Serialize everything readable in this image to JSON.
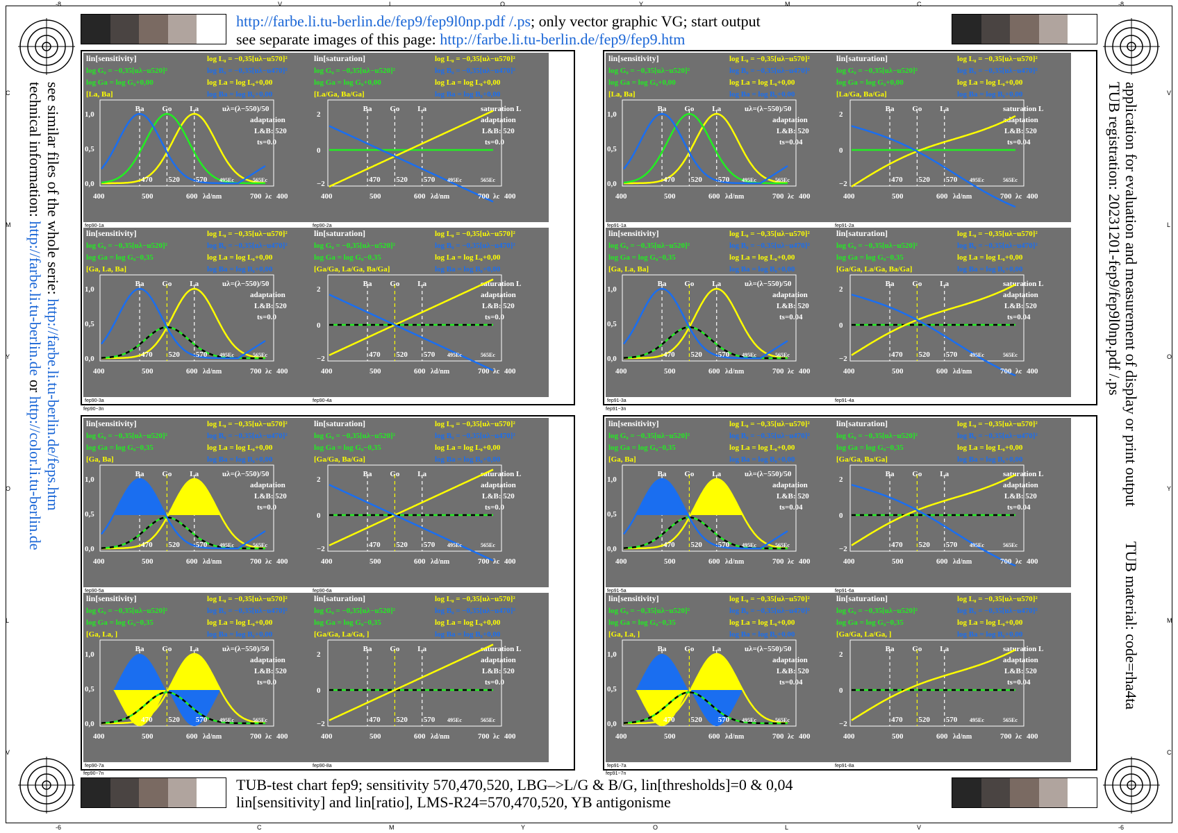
{
  "header": {
    "line1_link": "http://farbe.li.tu-berlin.de/fep9/fep9l0np.pdf /.ps",
    "line1_rest": "; only vector graphic VG; start output",
    "line2_text": "see separate images of this page: ",
    "line2_link": "http://farbe.li.tu-berlin.de/fep9/fep9.htm"
  },
  "footer": {
    "line1": "TUB-test chart fep9; sensitivity 570,470,520, LBG–>L/G & B/G, lin[thresholds]=0 & 0,04",
    "line2": "lin[sensitivity] and lin[ratio], LMS-R24=570,470,520, YB antigonisme"
  },
  "left_side": {
    "line1_text": "see similar files of the whole serie: ",
    "line1_link": "http://farbe.li.tu-berlin.de/feps.htm",
    "line2_text": "technical information: ",
    "line2_link1": "http://farbe.li.tu-berlin.de",
    "line2_or": " or ",
    "line2_link2": "http://color.li.tu-berlin.de"
  },
  "right_side": {
    "line1": "TUB registration: 20231201-fep9/fep9l0np.pdf /.ps",
    "line2": "application for evaluation and measurement of display or print output",
    "line3": "TUB material: code=rha4ta"
  },
  "edge_ticks": {
    "top": [
      "-8",
      "V",
      "L",
      "O",
      "Y",
      "M",
      "C",
      "-8"
    ],
    "bottom": [
      "-6",
      "C",
      "M",
      "Y",
      "O",
      "L",
      "V",
      "-6"
    ],
    "left": [
      "C",
      "M",
      "Y",
      "O",
      "L",
      "V"
    ],
    "right": [
      "V",
      "L",
      "O",
      "Y",
      "M",
      "C"
    ]
  },
  "group_labels": {
    "g1": "fep90−3n",
    "g2": "fep91−3n",
    "g3": "fep90−7n",
    "g4": "fep91−7n"
  },
  "colors": {
    "yellow": "#ffff00",
    "green": "#22ee22",
    "blue": "#1a6ef0",
    "panel_bg": "#707070",
    "white": "#ffffff"
  },
  "gray_strip": [
    "#262626",
    "#4a4442",
    "#7a6a62",
    "#b0a49e",
    "#ffffff"
  ],
  "formula": {
    "lo": "log L₀ = −0,35[uλ−u570]²",
    "go": "log G₀ = −0,35[uλ−u520]²",
    "bo": "log B₀ = −0,35[uλ−u470]²",
    "la": "log La = log L₀+0,00",
    "ba": "log Ba = log B₀+0,00",
    "ulam": "uλ=(λ−550)/50",
    "adapt": "adaptation",
    "lb": "L&B: 520",
    "satL": "saturation L"
  },
  "axes": {
    "sens_yticks": [
      "1,0",
      "0,5",
      "0,0"
    ],
    "sat_yticks": [
      "2",
      "0",
      "−2"
    ],
    "xticks": [
      "400",
      "500",
      "600",
      "700",
      "400"
    ],
    "xunit": "λd/nm",
    "lambda_c": "λc",
    "ec1": "495Ec",
    "ec2": "565Ec",
    "marks": [
      "470",
      "520",
      "570"
    ],
    "peak_names": [
      "Ba",
      "Go",
      "La"
    ]
  },
  "chart_data": {
    "type": "line",
    "panels": [
      {
        "id": "fep90-1a",
        "kind": "sensitivity",
        "title": "lin[sensitivity]",
        "ga": "log Ga = log G₀+0,00",
        "set": "[La, Ba]",
        "ts": "ts=0.0"
      },
      {
        "id": "fep90-2a",
        "kind": "saturation",
        "title": "lin[saturation]",
        "ga": "log Ga = log G₀+0,00",
        "set": "[La/Ga, Ba/Ga]",
        "ts": "ts=0.0"
      },
      {
        "id": "fep91-1a",
        "kind": "sensitivity",
        "title": "lin[sensitivity]",
        "ga": "log Ga = log G₀+0,00",
        "set": "[La, Ba]",
        "ts": "ts=0.04"
      },
      {
        "id": "fep91-2a",
        "kind": "saturation",
        "title": "lin[saturation]",
        "ga": "log Ga = log G₀+0,00",
        "set": "[La/Ga, Ba/Ga]",
        "ts": "ts=0.04"
      },
      {
        "id": "fep90-3a",
        "kind": "sensitivity",
        "title": "lin[sensitivity]",
        "ga": "log Ga = log G₀−0,35",
        "set": "[Ga, La, Ba]",
        "ts": "ts=0.0"
      },
      {
        "id": "fep90-4a",
        "kind": "saturation",
        "title": "lin[saturation]",
        "ga": "log Ga = log G₀−0,35",
        "set": "[Ga/Ga, La/Ga, Ba/Ga]",
        "ts": "ts=0.0"
      },
      {
        "id": "fep91-3a",
        "kind": "sensitivity",
        "title": "lin[sensitivity]",
        "ga": "log Ga = log G₀−0,35",
        "set": "[Ga, La, Ba]",
        "ts": "ts=0.04"
      },
      {
        "id": "fep91-4a",
        "kind": "saturation",
        "title": "lin[saturation]",
        "ga": "log Ga = log G₀−0,35",
        "set": "[Ga/Ga, La/Ga, Ba/Ga]",
        "ts": "ts=0.04"
      },
      {
        "id": "fep90-5a",
        "kind": "sensitivity",
        "title": "lin[sensitivity]",
        "ga": "log Ga = log G₀−0,35",
        "set": "[Ga, Ba]",
        "ts": "ts=0.0",
        "fill": "upper"
      },
      {
        "id": "fep90-6a",
        "kind": "saturation",
        "title": "lin[saturation]",
        "ga": "log Ga = log G₀−0,35",
        "set": "[Ga/Ga, Ba/Ga]",
        "ts": "ts=0.0"
      },
      {
        "id": "fep91-5a",
        "kind": "sensitivity",
        "title": "lin[sensitivity]",
        "ga": "log Ga = log G₀−0,35",
        "set": "[Ga, Ba]",
        "ts": "ts=0.04",
        "fill": "upper"
      },
      {
        "id": "fep91-6a",
        "kind": "saturation",
        "title": "lin[saturation]",
        "ga": "log Ga = log G₀−0,35",
        "set": "[Ga/Ga, Ba/Ga]",
        "ts": "ts=0.04"
      },
      {
        "id": "fep90-7a",
        "kind": "sensitivity",
        "title": "lin[sensitivity]",
        "ga": "log Ga = log G₀−0,35",
        "set": "[Ga, La, ]",
        "ts": "ts=0.0",
        "fill": "split"
      },
      {
        "id": "fep90-8a",
        "kind": "saturation",
        "title": "lin[saturation]",
        "ga": "log Ga = log G₀−0,35",
        "set": "[Ga/Ga, La/Ga, ]",
        "ts": "ts=0.0"
      },
      {
        "id": "fep91-7a",
        "kind": "sensitivity",
        "title": "lin[sensitivity]",
        "ga": "log Ga = log G₀−0,35",
        "set": "[Ga, La, ]",
        "ts": "ts=0.04",
        "fill": "split"
      },
      {
        "id": "fep91-8a",
        "kind": "saturation",
        "title": "lin[saturation]",
        "ga": "log Ga = log G₀−0,35",
        "set": "[Ga/Ga, La/Ga, ]",
        "ts": "ts=0.04"
      }
    ],
    "peaks_nm": {
      "B": 470,
      "G": 520,
      "L": 570
    },
    "gaussian_coefficient": -0.35,
    "u_lambda": "(λ−550)/50",
    "sens_ylim": [
      0,
      1
    ],
    "sat_ylim": [
      -2,
      2
    ],
    "xlim_nm": [
      400,
      700
    ]
  }
}
